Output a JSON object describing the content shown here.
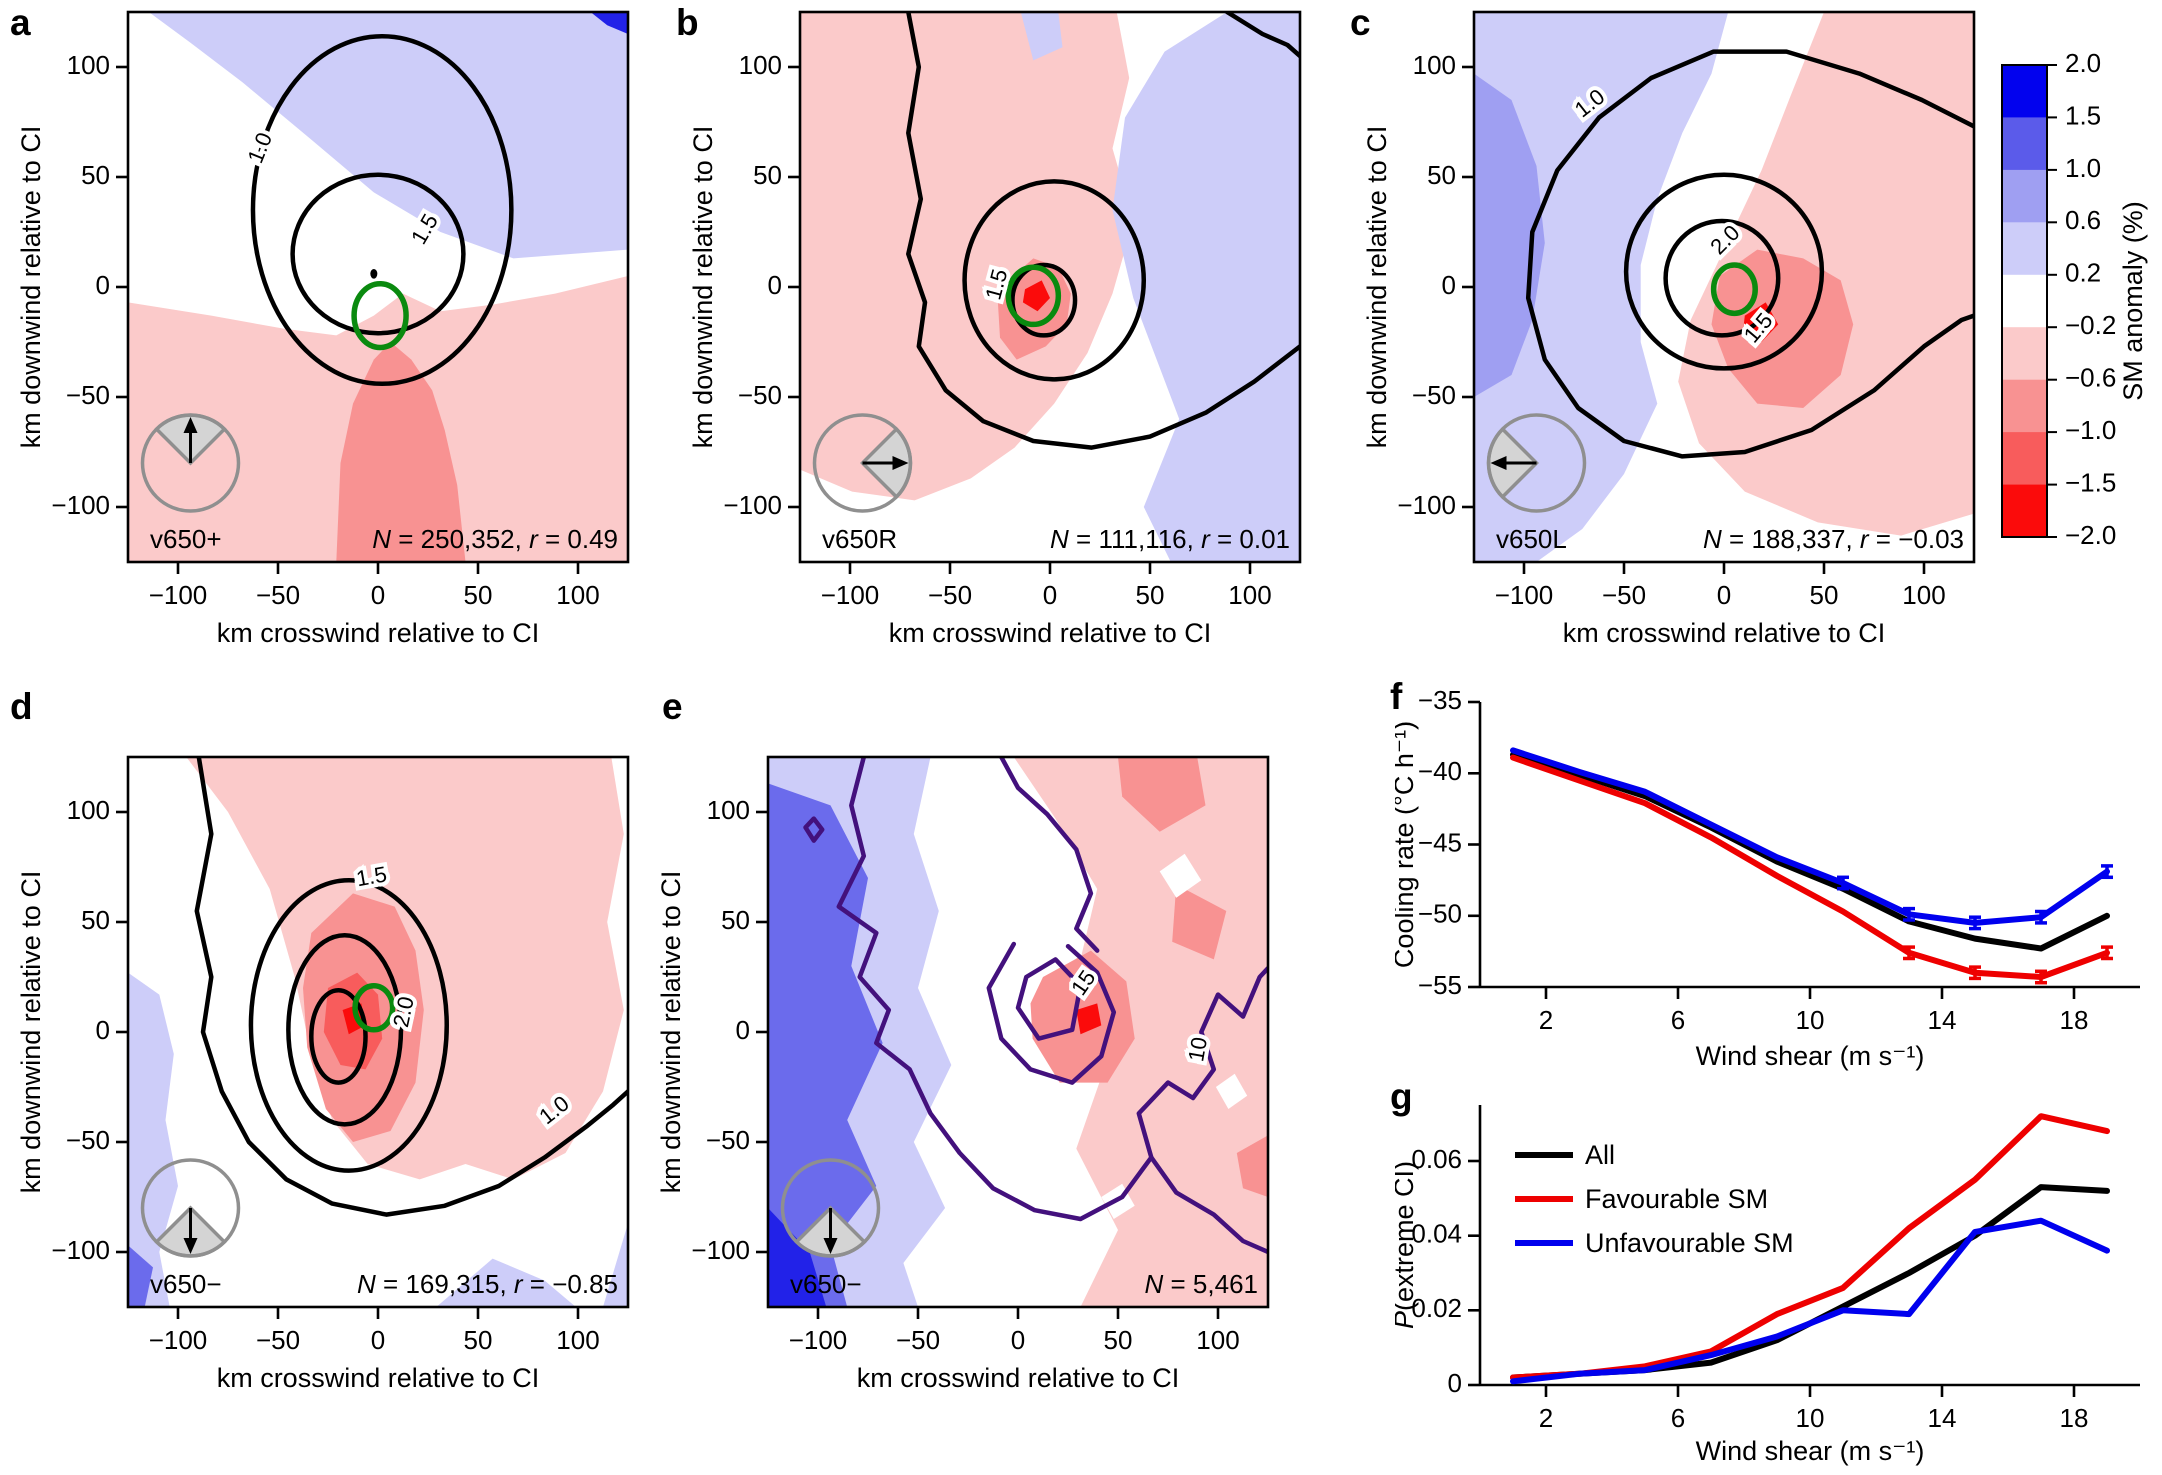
{
  "figure": {
    "map_axis": {
      "xlabel": "km crosswind relative to CI",
      "ylabel": "km downwind relative to CI",
      "xtick_labels": [
        "−100",
        "−50",
        "0",
        "50",
        "100"
      ],
      "ytick_labels": [
        "100",
        "50",
        "0",
        "−50",
        "−100"
      ],
      "xtick_values": [
        -100,
        -50,
        0,
        50,
        100
      ],
      "ytick_values": [
        100,
        50,
        0,
        -50,
        -100
      ]
    },
    "colorbar": {
      "title": "SM anomaly (%)",
      "tick_labels": [
        "2.0",
        "1.5",
        "1.0",
        "0.6",
        "0.2",
        "−0.2",
        "−0.6",
        "−1.0",
        "−1.5",
        "−2.0"
      ],
      "segment_colors": [
        "#0202ee",
        "#5b5bea",
        "#9f9ff2",
        "#cdcdf9",
        "#ffffff",
        "#fbcaca",
        "#f89292",
        "#f85c5c",
        "#fb0b0b"
      ]
    }
  },
  "panels": {
    "a": {
      "letter": "a",
      "tag": "v650+",
      "n_label": "N",
      "n_value": "250,352",
      "r_label": "r",
      "r_value": "0.49",
      "contour_labels": [
        "1.0",
        "1.5"
      ],
      "inset_arrow_direction": "up"
    },
    "b": {
      "letter": "b",
      "tag": "v650R",
      "n_label": "N",
      "n_value": "111,116",
      "r_label": "r",
      "r_value": "0.01",
      "contour_labels": [
        "1.5"
      ],
      "inset_arrow_direction": "right"
    },
    "c": {
      "letter": "c",
      "tag": "v650L",
      "n_label": "N",
      "n_value": "188,337",
      "r_label": "r",
      "r_value": "−0.03",
      "contour_labels": [
        "1.0",
        "2.0",
        "1.5"
      ],
      "inset_arrow_direction": "left"
    },
    "d": {
      "letter": "d",
      "tag": "v650−",
      "n_label": "N",
      "n_value": "169,315",
      "r_label": "r",
      "r_value": "−0.85",
      "contour_labels": [
        "1.5",
        "2.0",
        "1.0"
      ],
      "inset_arrow_direction": "down"
    },
    "e": {
      "letter": "e",
      "tag": "v650−",
      "n_label": "N",
      "n_value": "5,461",
      "r_label": "",
      "r_value": "",
      "contour_labels": [
        "15",
        "10"
      ],
      "inset_arrow_direction": "down"
    },
    "f": {
      "letter": "f"
    },
    "g": {
      "letter": "g",
      "ylabel_italic": "P",
      "ylabel_rest": "(extreme CI)"
    }
  },
  "chart_data": [
    {
      "id": "a",
      "type": "contour_map",
      "title": "v650+",
      "N": 250352,
      "r": 0.49,
      "labeled_contour_levels": [
        1.0,
        1.5
      ],
      "x_range": [
        -125,
        125
      ],
      "y_range": [
        -125,
        125
      ],
      "xlabel": "km crosswind relative to CI",
      "ylabel": "km downwind relative to CI",
      "fill_variable": "SM anomaly (%)",
      "fill_range": [
        -2.0,
        2.0
      ],
      "inset_arrow_direction": "up",
      "green_contour_center_km": [
        0,
        -10
      ]
    },
    {
      "id": "b",
      "type": "contour_map",
      "title": "v650R",
      "N": 111116,
      "r": 0.01,
      "labeled_contour_levels": [
        1.5
      ],
      "x_range": [
        -125,
        125
      ],
      "y_range": [
        -125,
        125
      ],
      "xlabel": "km crosswind relative to CI",
      "ylabel": "km downwind relative to CI",
      "fill_variable": "SM anomaly (%)",
      "fill_range": [
        -2.0,
        2.0
      ],
      "inset_arrow_direction": "right",
      "green_contour_center_km": [
        -8,
        -5
      ]
    },
    {
      "id": "c",
      "type": "contour_map",
      "title": "v650L",
      "N": 188337,
      "r": -0.03,
      "labeled_contour_levels": [
        1.0,
        2.0,
        1.5
      ],
      "x_range": [
        -125,
        125
      ],
      "y_range": [
        -125,
        125
      ],
      "xlabel": "km crosswind relative to CI",
      "ylabel": "km downwind relative to CI",
      "fill_variable": "SM anomaly (%)",
      "fill_range": [
        -2.0,
        2.0
      ],
      "inset_arrow_direction": "left",
      "green_contour_center_km": [
        5,
        -4
      ]
    },
    {
      "id": "d",
      "type": "contour_map",
      "title": "v650−",
      "N": 169315,
      "r": -0.85,
      "labeled_contour_levels": [
        1.5,
        2.0,
        1.0
      ],
      "x_range": [
        -125,
        125
      ],
      "y_range": [
        -125,
        125
      ],
      "xlabel": "km crosswind relative to CI",
      "ylabel": "km downwind relative to CI",
      "fill_variable": "SM anomaly (%)",
      "fill_range": [
        -2.0,
        2.0
      ],
      "inset_arrow_direction": "down",
      "green_contour_center_km": [
        0,
        8
      ]
    },
    {
      "id": "e",
      "type": "contour_map",
      "title": "v650−",
      "N": 5461,
      "labeled_contour_levels": [
        15,
        10
      ],
      "x_range": [
        -125,
        125
      ],
      "y_range": [
        -125,
        125
      ],
      "xlabel": "km crosswind relative to CI",
      "ylabel": "km downwind relative to CI",
      "fill_variable": "SM anomaly (%)",
      "fill_range": [
        -2.0,
        2.0
      ],
      "inset_arrow_direction": "down",
      "contour_color": "purple"
    },
    {
      "id": "f",
      "type": "line",
      "xlabel": "Wind shear (m s⁻¹)",
      "ylabel": "Cooling rate (°C h⁻¹)",
      "x": [
        1,
        3,
        5,
        7,
        9,
        11,
        13,
        15,
        17,
        19
      ],
      "xlim": [
        0,
        20
      ],
      "ylim": [
        -55,
        -35
      ],
      "xtick_values": [
        2,
        6,
        10,
        14,
        18
      ],
      "xtick_labels": [
        "2",
        "6",
        "10",
        "14",
        "18"
      ],
      "ytick_values": [
        -35,
        -40,
        -45,
        -50,
        -55
      ],
      "ytick_labels": [
        "−35",
        "−40",
        "−45",
        "−50",
        "−55"
      ],
      "series": [
        {
          "name": "All",
          "color": "#000000",
          "values": [
            -38.7,
            -40.1,
            -41.6,
            -43.8,
            -46.2,
            -48.1,
            -50.4,
            -51.6,
            -52.3,
            -50.0
          ]
        },
        {
          "name": "Favourable SM",
          "color": "#ee0000",
          "values": [
            -38.9,
            -40.5,
            -42.1,
            -44.5,
            -47.2,
            -49.7,
            -52.6,
            -54.0,
            -54.3,
            -52.6
          ],
          "error_bar_x": [
            13,
            15,
            17,
            19
          ],
          "error_half": 0.4
        },
        {
          "name": "Unfavourable SM",
          "color": "#0000ee",
          "values": [
            -38.4,
            -39.9,
            -41.3,
            -43.6,
            -45.9,
            -47.7,
            -49.9,
            -50.5,
            -50.1,
            -46.9
          ],
          "error_bar_x": [
            11,
            13,
            15,
            17,
            19
          ],
          "error_half": 0.4
        }
      ],
      "grid": false,
      "legend": false
    },
    {
      "id": "g",
      "type": "line",
      "xlabel": "Wind shear (m s⁻¹)",
      "ylabel": "P(extreme CI)",
      "x": [
        1,
        3,
        5,
        7,
        9,
        11,
        13,
        15,
        17,
        19
      ],
      "xlim": [
        0,
        20
      ],
      "ylim": [
        0,
        0.075
      ],
      "xtick_values": [
        2,
        6,
        10,
        14,
        18
      ],
      "xtick_labels": [
        "2",
        "6",
        "10",
        "14",
        "18"
      ],
      "ytick_values": [
        0,
        0.02,
        0.04,
        0.06
      ],
      "ytick_labels": [
        "0",
        "0.02",
        "0.04",
        "0.06"
      ],
      "series": [
        {
          "name": "All",
          "color": "#000000",
          "values": [
            0.002,
            0.003,
            0.004,
            0.006,
            0.012,
            0.021,
            0.03,
            0.04,
            0.053,
            0.052
          ]
        },
        {
          "name": "Favourable SM",
          "color": "#ee0000",
          "values": [
            0.002,
            0.003,
            0.005,
            0.009,
            0.019,
            0.026,
            0.042,
            0.055,
            0.072,
            0.068
          ]
        },
        {
          "name": "Unfavourable SM",
          "color": "#0000ee",
          "values": [
            0.001,
            0.003,
            0.004,
            0.008,
            0.013,
            0.02,
            0.019,
            0.041,
            0.044,
            0.036
          ]
        }
      ],
      "grid": false,
      "legend": true,
      "legend_entries": [
        "All",
        "Favourable SM",
        "Unfavourable SM"
      ],
      "legend_position": "upper left"
    }
  ]
}
